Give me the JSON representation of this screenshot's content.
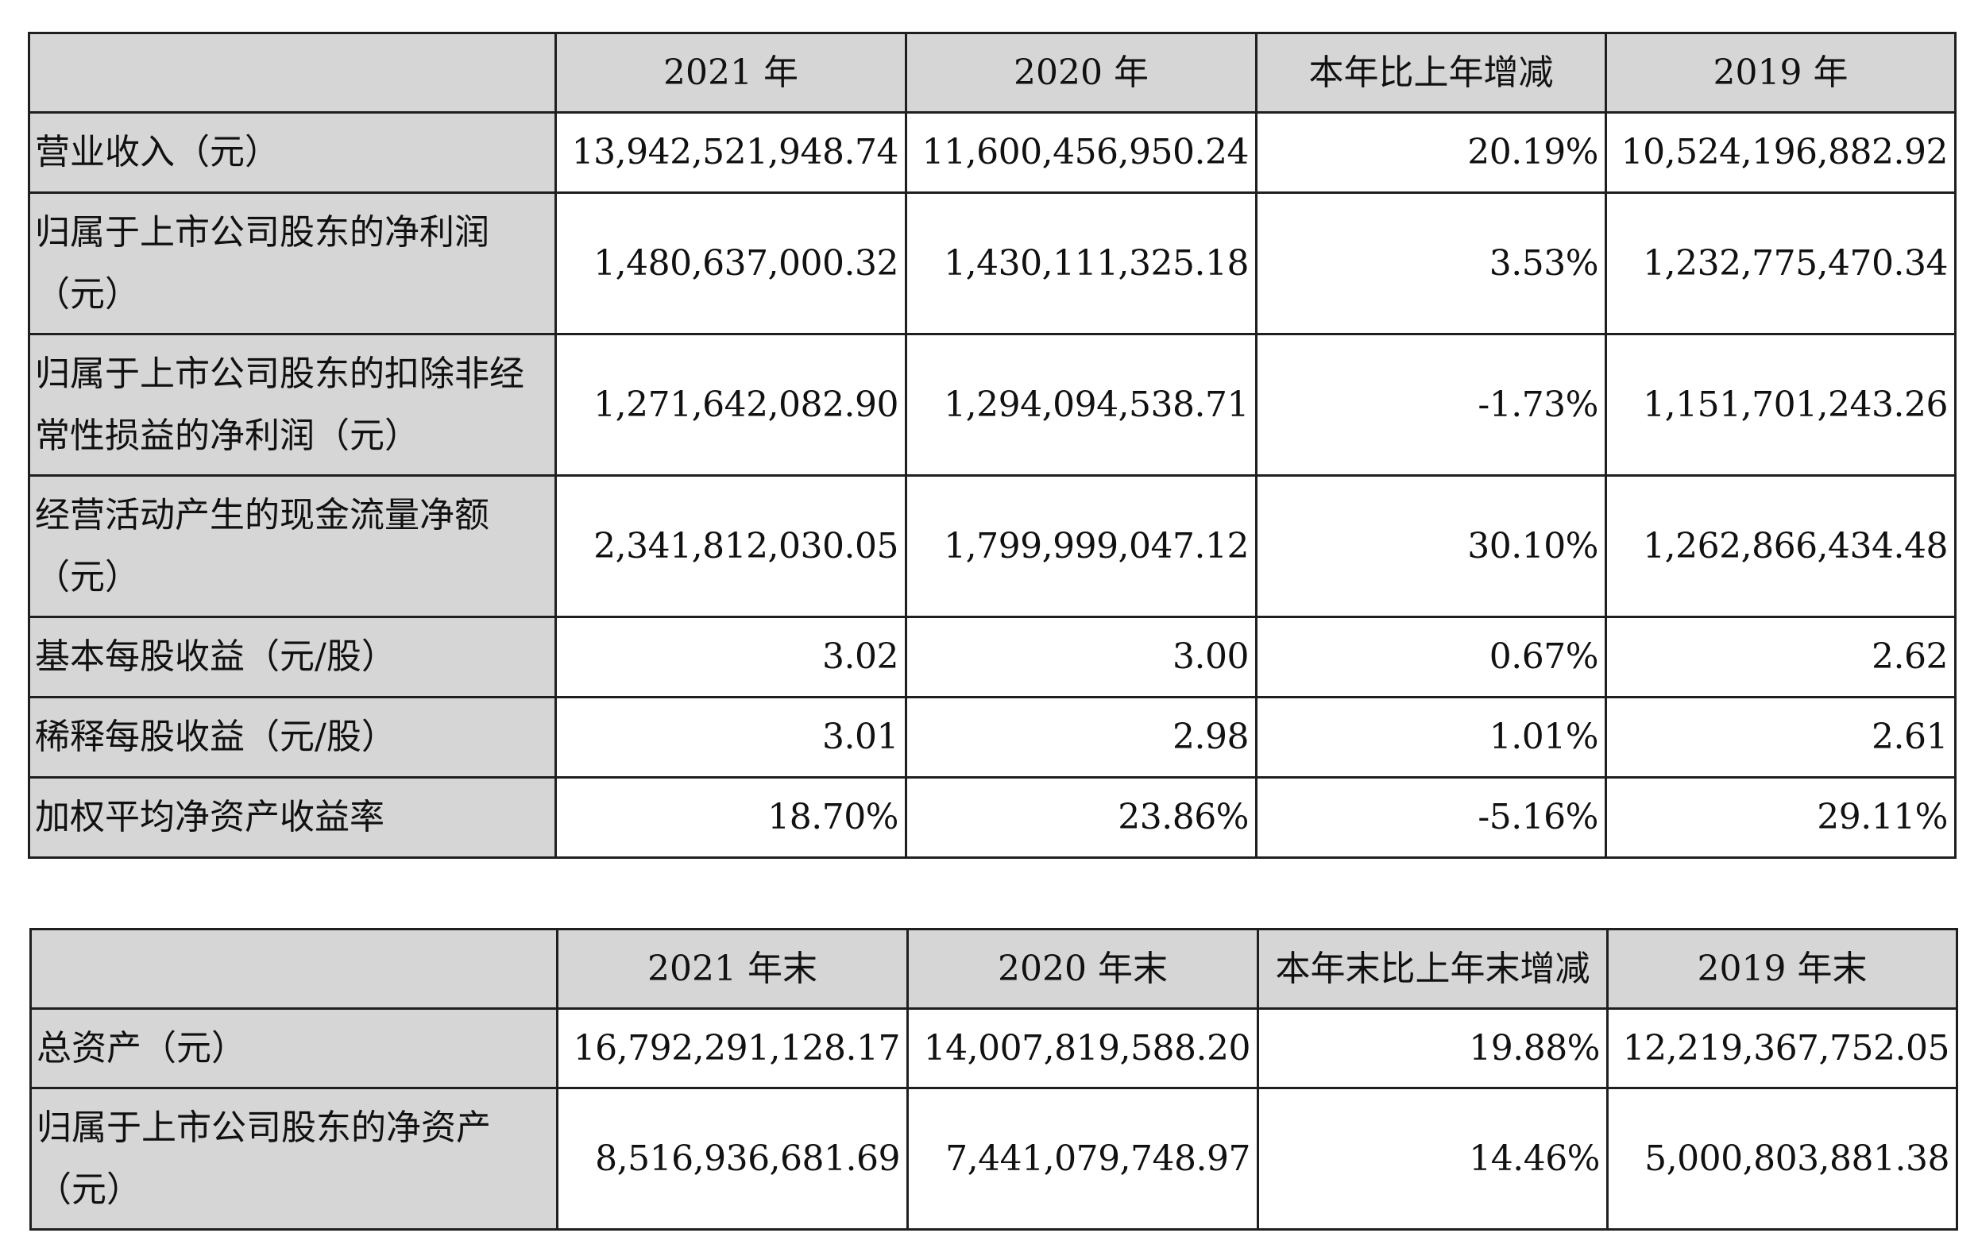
{
  "table1": {
    "headers": [
      "",
      "2021 年",
      "2020 年",
      "本年比上年增减",
      "2019 年"
    ],
    "rows": [
      {
        "label": "营业收入（元）",
        "values": [
          "13,942,521,948.74",
          "11,600,456,950.24",
          "20.19%",
          "10,524,196,882.92"
        ]
      },
      {
        "label": "归属于上市公司股东的净利润（元）",
        "values": [
          "1,480,637,000.32",
          "1,430,111,325.18",
          "3.53%",
          "1,232,775,470.34"
        ]
      },
      {
        "label": "归属于上市公司股东的扣除非经常性损益的净利润（元）",
        "values": [
          "1,271,642,082.90",
          "1,294,094,538.71",
          "-1.73%",
          "1,151,701,243.26"
        ]
      },
      {
        "label": "经营活动产生的现金流量净额（元）",
        "values": [
          "2,341,812,030.05",
          "1,799,999,047.12",
          "30.10%",
          "1,262,866,434.48"
        ]
      },
      {
        "label": "基本每股收益（元/股）",
        "values": [
          "3.02",
          "3.00",
          "0.67%",
          "2.62"
        ]
      },
      {
        "label": "稀释每股收益（元/股）",
        "values": [
          "3.01",
          "2.98",
          "1.01%",
          "2.61"
        ]
      },
      {
        "label": "加权平均净资产收益率",
        "values": [
          "18.70%",
          "23.86%",
          "-5.16%",
          "29.11%"
        ]
      }
    ]
  },
  "table2": {
    "headers": [
      "",
      "2021 年末",
      "2020 年末",
      "本年末比上年末增减",
      "2019 年末"
    ],
    "rows": [
      {
        "label": "总资产（元）",
        "values": [
          "16,792,291,128.17",
          "14,007,819,588.20",
          "19.88%",
          "12,219,367,752.05"
        ]
      },
      {
        "label": "归属于上市公司股东的净资产（元）",
        "values": [
          "8,516,936,681.69",
          "7,441,079,748.97",
          "14.46%",
          "5,000,803,881.38"
        ]
      }
    ]
  }
}
